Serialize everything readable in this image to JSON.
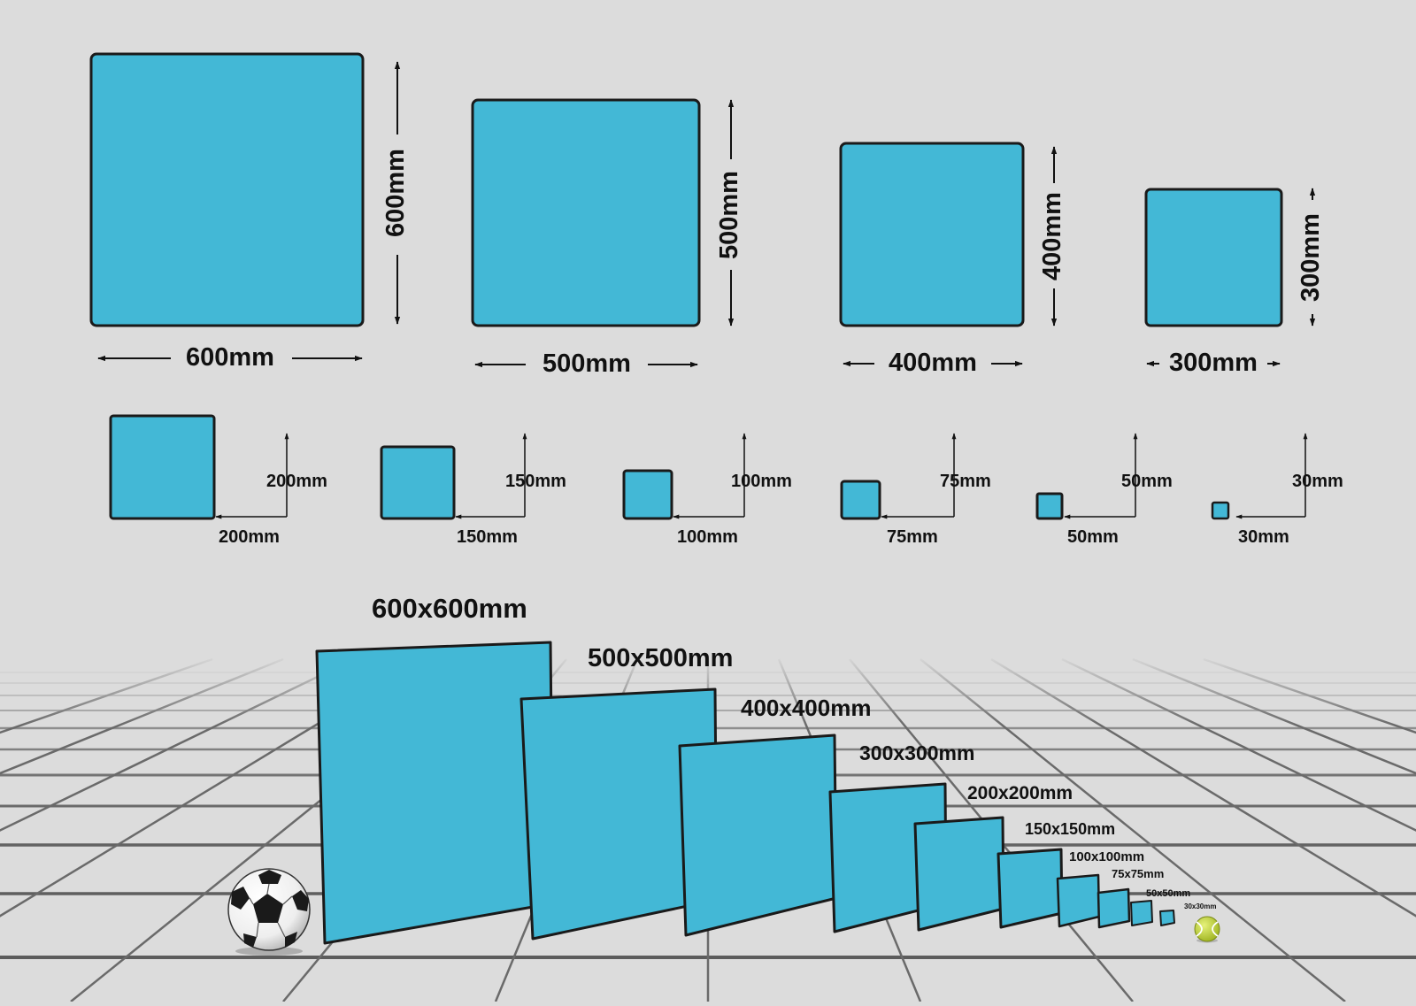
{
  "colors": {
    "background": "#dcdcdc",
    "panel_fill": "#43b8d6",
    "panel_stroke": "#1a1a1a",
    "floor_line": "#5f5f5f",
    "tennis_ball": "#c8dd2c"
  },
  "large_panels": [
    {
      "width_label": "600mm",
      "height_label": "600mm"
    },
    {
      "width_label": "500mm",
      "height_label": "500mm"
    },
    {
      "width_label": "400mm",
      "height_label": "400mm"
    },
    {
      "width_label": "300mm",
      "height_label": "300mm"
    }
  ],
  "small_panels": [
    {
      "width_label": "200mm",
      "height_label": "200mm"
    },
    {
      "width_label": "150mm",
      "height_label": "150mm"
    },
    {
      "width_label": "100mm",
      "height_label": "100mm"
    },
    {
      "width_label": "75mm",
      "height_label": "75mm"
    },
    {
      "width_label": "50mm",
      "height_label": "50mm"
    },
    {
      "width_label": "30mm",
      "height_label": "30mm"
    }
  ],
  "perspective_panels": [
    {
      "label": "600x600mm"
    },
    {
      "label": "500x500mm"
    },
    {
      "label": "400x400mm"
    },
    {
      "label": "300x300mm"
    },
    {
      "label": "200x200mm"
    },
    {
      "label": "150x150mm"
    },
    {
      "label": "100x100mm"
    },
    {
      "label": "75x75mm"
    },
    {
      "label": "50x50mm"
    },
    {
      "label": "30x30mm"
    }
  ],
  "scale_objects": [
    {
      "icon": "soccer-ball-icon"
    },
    {
      "icon": "tennis-ball-icon"
    }
  ]
}
